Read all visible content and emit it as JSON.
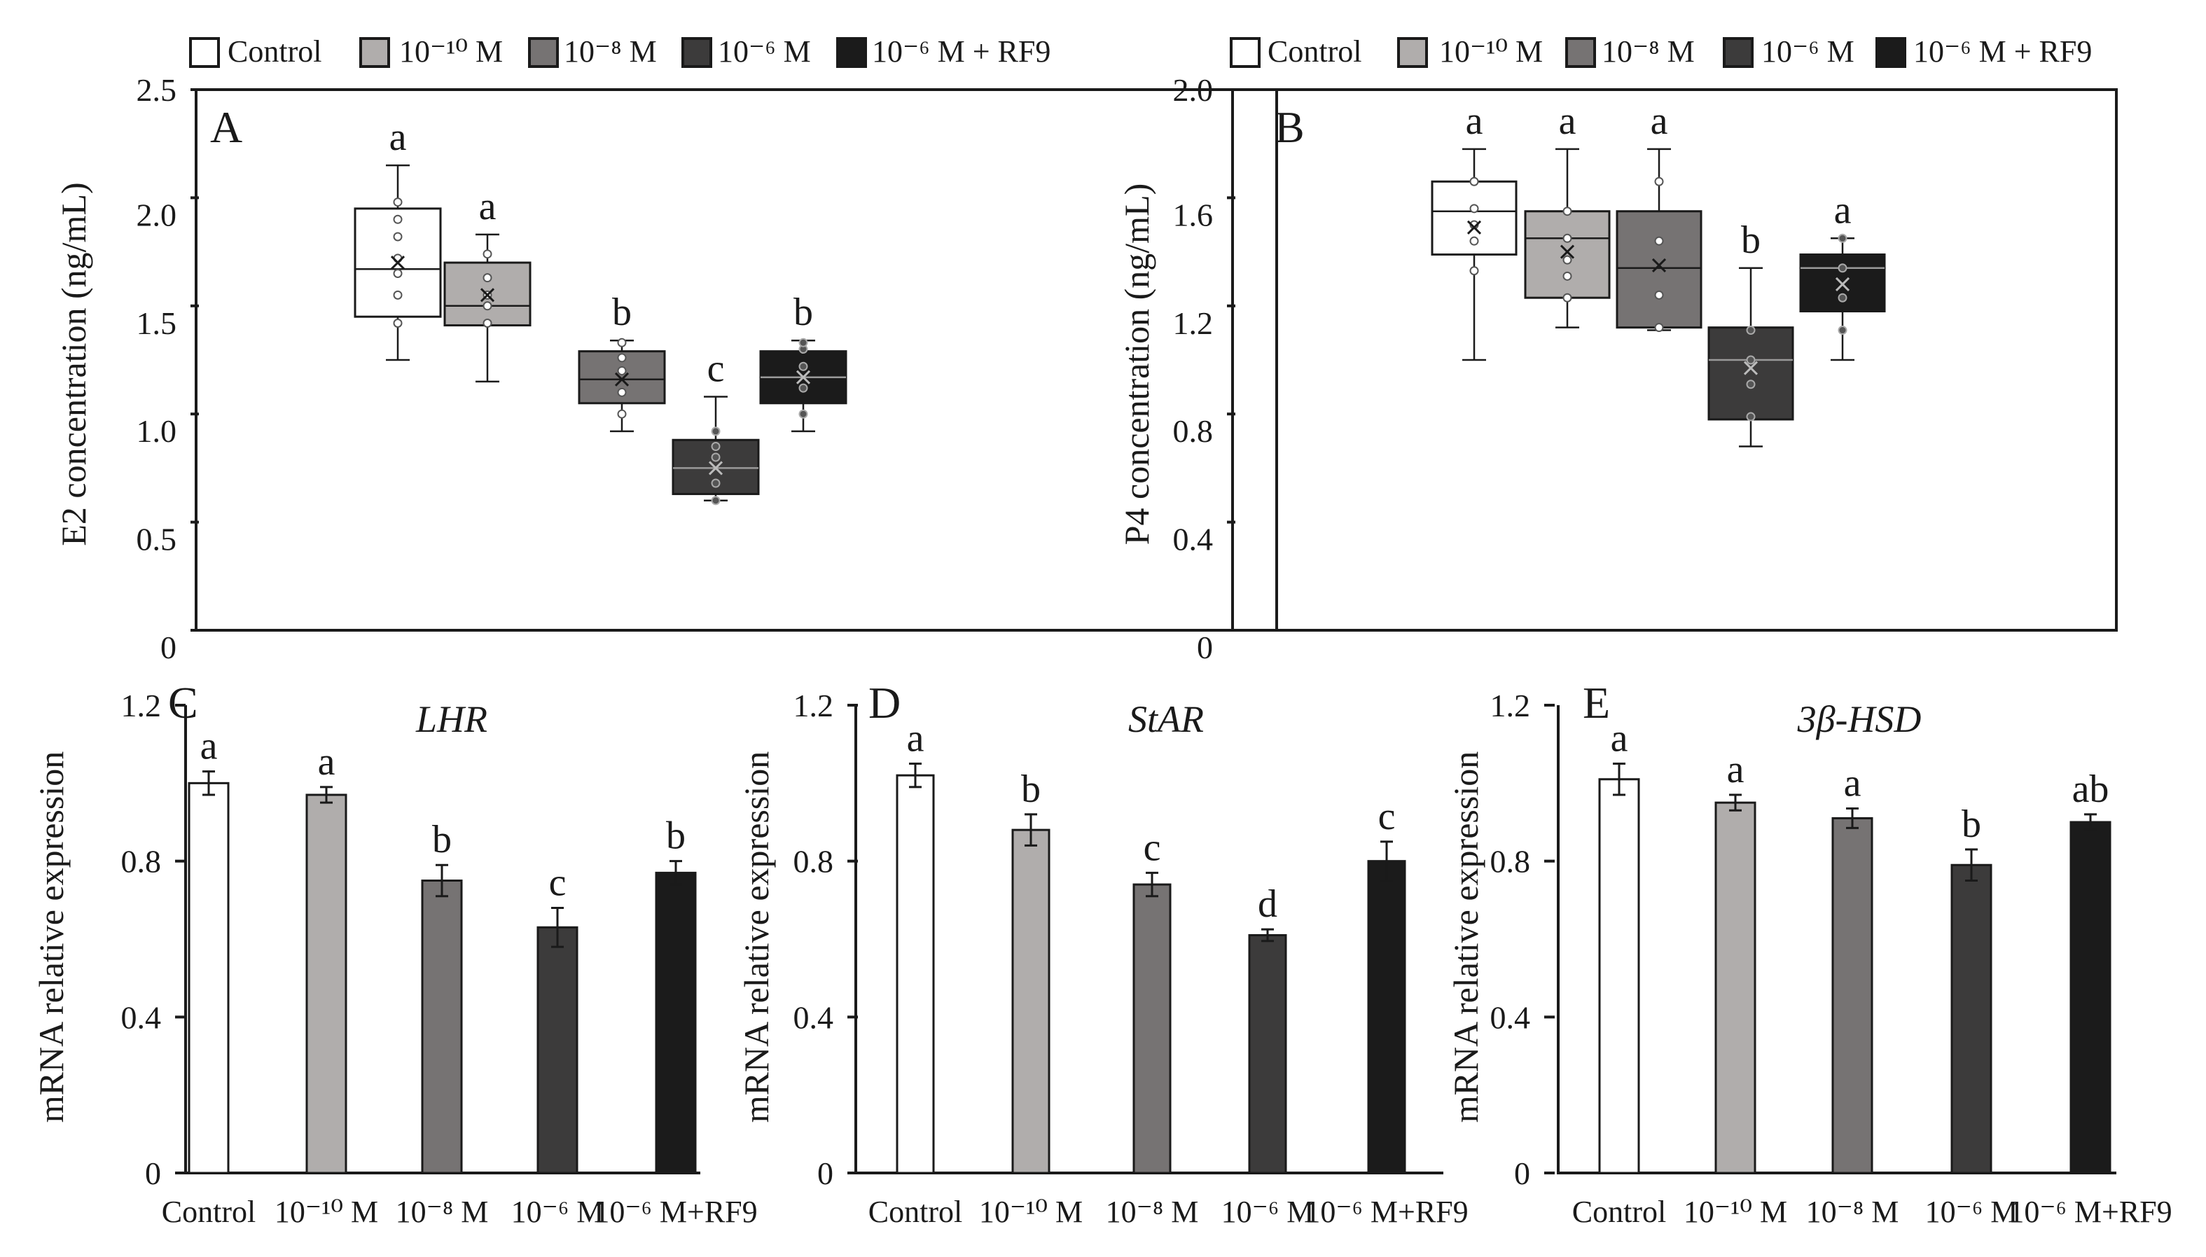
{
  "colors": {
    "groups": [
      "#ffffff",
      "#b0adac",
      "#767373",
      "#3c3b3b",
      "#1b1b1b"
    ],
    "stroke": "#1a1a1a"
  },
  "legend_top_left": [
    "Control",
    "10⁻¹⁰ M",
    "10⁻⁸ M",
    "10⁻⁶ M",
    "10⁻⁶ M + RF9"
  ],
  "legend_top_right": [
    "Control",
    "10⁻¹⁰ M",
    "10⁻⁸ M",
    "10⁻⁶ M",
    "10⁻⁶ M + RF9"
  ],
  "chart_data": [
    {
      "panel": "A",
      "type": "box",
      "ylabel": "E2 concentration (ng/mL)",
      "ylim": [
        0,
        2.5
      ],
      "yticks": [
        0,
        0.5,
        1.0,
        1.5,
        2.0,
        2.5
      ],
      "ytick_labels": [
        "0",
        "0.5",
        "1.0",
        "1.5",
        "2.0",
        "2.5"
      ],
      "categories": [
        "Control",
        "10⁻¹⁰ M",
        "10⁻⁸ M",
        "10⁻⁶ M",
        "10⁻⁶ M + RF9"
      ],
      "boxes": [
        {
          "whisker_low": 1.25,
          "q1": 1.45,
          "median": 1.67,
          "q3": 1.95,
          "whisker_high": 2.15,
          "mean": 1.7,
          "points": [
            1.42,
            1.55,
            1.65,
            1.72,
            1.82,
            1.9,
            1.98
          ],
          "letter": "a"
        },
        {
          "whisker_low": 1.15,
          "q1": 1.41,
          "median": 1.5,
          "q3": 1.7,
          "whisker_high": 1.83,
          "mean": 1.55,
          "points": [
            1.42,
            1.5,
            1.55,
            1.63,
            1.74
          ],
          "letter": "a"
        },
        {
          "whisker_low": 0.92,
          "q1": 1.05,
          "median": 1.16,
          "q3": 1.29,
          "whisker_high": 1.34,
          "mean": 1.16,
          "points": [
            1.0,
            1.1,
            1.2,
            1.26,
            1.33
          ],
          "letter": "b"
        },
        {
          "whisker_low": 0.6,
          "q1": 0.63,
          "median": 0.75,
          "q3": 0.88,
          "whisker_high": 1.08,
          "mean": 0.75,
          "points": [
            0.6,
            0.68,
            0.8,
            0.85,
            0.92
          ],
          "letter": "c"
        },
        {
          "whisker_low": 0.92,
          "q1": 1.05,
          "median": 1.17,
          "q3": 1.29,
          "whisker_high": 1.34,
          "mean": 1.17,
          "points": [
            1.0,
            1.12,
            1.22,
            1.3,
            1.33
          ],
          "letter": "b"
        }
      ]
    },
    {
      "panel": "B",
      "type": "box",
      "ylabel": "P4 concentration (ng/mL)",
      "ylim": [
        0,
        2.0
      ],
      "yticks": [
        0,
        0.4,
        0.8,
        1.2,
        1.6,
        2.0
      ],
      "ytick_labels": [
        "0",
        "0.4",
        "0.8",
        "1.2",
        "1.6",
        "2.0"
      ],
      "categories": [
        "Control",
        "10⁻¹⁰ M",
        "10⁻⁸ M",
        "10⁻⁶ M",
        "10⁻⁶ M + RF9"
      ],
      "boxes": [
        {
          "whisker_low": 1.0,
          "q1": 1.39,
          "median": 1.55,
          "q3": 1.66,
          "whisker_high": 1.78,
          "mean": 1.49,
          "points": [
            1.33,
            1.44,
            1.5,
            1.56,
            1.66
          ],
          "letter": "a"
        },
        {
          "whisker_low": 1.12,
          "q1": 1.23,
          "median": 1.45,
          "q3": 1.55,
          "whisker_high": 1.78,
          "mean": 1.4,
          "points": [
            1.23,
            1.31,
            1.37,
            1.45,
            1.55
          ],
          "letter": "a"
        },
        {
          "whisker_low": 1.11,
          "q1": 1.12,
          "median": 1.34,
          "q3": 1.55,
          "whisker_high": 1.78,
          "mean": 1.35,
          "points": [
            1.12,
            1.24,
            1.44,
            1.66
          ],
          "letter": "a"
        },
        {
          "whisker_low": 0.68,
          "q1": 0.78,
          "median": 1.0,
          "q3": 1.12,
          "whisker_high": 1.34,
          "mean": 0.97,
          "points": [
            0.79,
            0.91,
            1.0,
            1.11
          ],
          "letter": "b"
        },
        {
          "whisker_low": 1.0,
          "q1": 1.18,
          "median": 1.34,
          "q3": 1.39,
          "whisker_high": 1.45,
          "mean": 1.28,
          "points": [
            1.11,
            1.23,
            1.34,
            1.45
          ],
          "letter": "a"
        }
      ]
    },
    {
      "panel": "C",
      "type": "bar",
      "title": "LHR",
      "ylabel": "mRNA relative expression",
      "ylim": [
        0,
        1.2
      ],
      "yticks": [
        0,
        0.4,
        0.8,
        1.2
      ],
      "ytick_labels": [
        "0",
        "0.4",
        "0.8",
        "1.2"
      ],
      "categories": [
        "Control",
        "10⁻¹⁰ M",
        "10⁻⁸ M",
        "10⁻⁶ M",
        "10⁻⁶ M+RF9"
      ],
      "values": [
        1.0,
        0.97,
        0.75,
        0.63,
        0.77
      ],
      "errors": [
        0.03,
        0.02,
        0.04,
        0.05,
        0.03
      ],
      "letters": [
        "a",
        "a",
        "b",
        "c",
        "b"
      ]
    },
    {
      "panel": "D",
      "type": "bar",
      "title": "StAR",
      "ylabel": "mRNA relative expression",
      "ylim": [
        0,
        1.2
      ],
      "yticks": [
        0,
        0.4,
        0.8,
        1.2
      ],
      "ytick_labels": [
        "0",
        "0.4",
        "0.8",
        "1.2"
      ],
      "categories": [
        "Control",
        "10⁻¹⁰ M",
        "10⁻⁸ M",
        "10⁻⁶ M",
        "10⁻⁶ M+RF9"
      ],
      "values": [
        1.02,
        0.88,
        0.74,
        0.61,
        0.8
      ],
      "errors": [
        0.03,
        0.04,
        0.03,
        0.015,
        0.05
      ],
      "letters": [
        "a",
        "b",
        "c",
        "d",
        "c"
      ]
    },
    {
      "panel": "E",
      "type": "bar",
      "title": "3β-HSD",
      "ylabel": "mRNA relative expression",
      "ylim": [
        0,
        1.2
      ],
      "yticks": [
        0,
        0.4,
        0.8,
        1.2
      ],
      "ytick_labels": [
        "0",
        "0.4",
        "0.8",
        "1.2"
      ],
      "categories": [
        "Control",
        "10⁻¹⁰ M",
        "10⁻⁸ M",
        "10⁻⁶ M",
        "10⁻⁶ M+RF9"
      ],
      "values": [
        1.01,
        0.95,
        0.91,
        0.79,
        0.9
      ],
      "errors": [
        0.04,
        0.02,
        0.025,
        0.04,
        0.02
      ],
      "letters": [
        "a",
        "a",
        "a",
        "b",
        "ab"
      ]
    }
  ]
}
